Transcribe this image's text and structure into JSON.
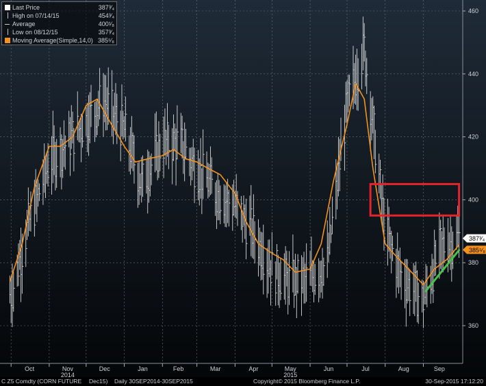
{
  "legend": {
    "last_price_label": "Last Price",
    "last_price_value": "387³⁄₄",
    "high_label": "High on 07/14/15",
    "high_value": "454³⁄₄",
    "average_label": "Average",
    "average_value": "400¹⁄₈",
    "low_label": "Low on 08/12/15",
    "low_value": "357³⁄₄",
    "ma_label": "Moving Average(Simple,14,0)",
    "ma_value": "385⁵⁄₈",
    "ma_color": "#f5921e"
  },
  "price_tags": {
    "last": "387³⁄₄",
    "ma": "385⁵⁄₈"
  },
  "footer": {
    "ticker": "C Z5 Comdty (CORN FUTURE",
    "contract": "Dec15)",
    "range": "Daily 30SEP2014-30SEP2015",
    "copyright": "Copyright© 2015 Bloomberg Finance L.P.",
    "timestamp": "30-Sep-2015 17:12:20"
  },
  "chart_data": {
    "type": "line",
    "style": "dark",
    "bar_color": "#d9d9d9",
    "grid": "dashed",
    "ylim": [
      350,
      460
    ],
    "yticks": [
      360,
      380,
      400,
      420,
      440,
      460
    ],
    "x_tick_labels": [
      "Oct",
      "Nov",
      "Dec",
      "Jan",
      "Feb",
      "Mar",
      "Apr",
      "May",
      "Jun",
      "Jul",
      "Aug",
      "Sep"
    ],
    "year_labels": [
      {
        "after": "Nov",
        "text": "2014"
      },
      {
        "after": "May",
        "text": "2015"
      }
    ],
    "series": [
      {
        "name": "Last Price",
        "kind": "high-low bars",
        "x": [
          "2014-10-01",
          "2014-10-15",
          "2014-11-01",
          "2014-11-15",
          "2014-12-01",
          "2014-12-15",
          "2015-01-01",
          "2015-01-15",
          "2015-02-01",
          "2015-02-15",
          "2015-03-01",
          "2015-03-15",
          "2015-04-01",
          "2015-04-15",
          "2015-05-01",
          "2015-05-15",
          "2015-06-01",
          "2015-06-15",
          "2015-07-01",
          "2015-07-15",
          "2015-08-01",
          "2015-08-15",
          "2015-09-01",
          "2015-09-15",
          "2015-09-30"
        ],
        "y": [
          370,
          392,
          412,
          418,
          425,
          432,
          422,
          405,
          418,
          418,
          410,
          403,
          398,
          390,
          378,
          374,
          375,
          380,
          430,
          448,
          390,
          375,
          368,
          385,
          387.75
        ]
      },
      {
        "name": "Moving Average(Simple,14,0)",
        "color": "#f5921e",
        "x": [
          "2014-09-30",
          "2014-10-10",
          "2014-10-20",
          "2014-11-01",
          "2014-11-10",
          "2014-11-20",
          "2014-12-01",
          "2014-12-10",
          "2014-12-20",
          "2015-01-01",
          "2015-01-10",
          "2015-01-20",
          "2015-02-01",
          "2015-02-10",
          "2015-02-20",
          "2015-03-01",
          "2015-03-10",
          "2015-03-20",
          "2015-04-01",
          "2015-04-10",
          "2015-04-20",
          "2015-05-01",
          "2015-05-10",
          "2015-05-20",
          "2015-06-01",
          "2015-06-10",
          "2015-06-20",
          "2015-07-01",
          "2015-07-08",
          "2015-07-15",
          "2015-07-22",
          "2015-08-01",
          "2015-08-10",
          "2015-08-20",
          "2015-09-01",
          "2015-09-10",
          "2015-09-20",
          "2015-09-30"
        ],
        "y": [
          374,
          386,
          404,
          417,
          417,
          420,
          430,
          432,
          425,
          417,
          412,
          413,
          414,
          416,
          413,
          412,
          410,
          408,
          402,
          393,
          386,
          383,
          381,
          377,
          378,
          386,
          406,
          424,
          437,
          432,
          410,
          386,
          382,
          378,
          373,
          378,
          381,
          385.625
        ]
      }
    ],
    "annotations": [
      {
        "type": "rectangle",
        "color": "#e3242b",
        "x0": "2015-07-20",
        "x1": "2015-09-30",
        "y0": 395,
        "y1": 405
      },
      {
        "type": "trendline",
        "color": "#46c24a",
        "x0": "2015-09-03",
        "y0": 371,
        "x1": "2015-09-30",
        "y1": 384
      }
    ]
  }
}
